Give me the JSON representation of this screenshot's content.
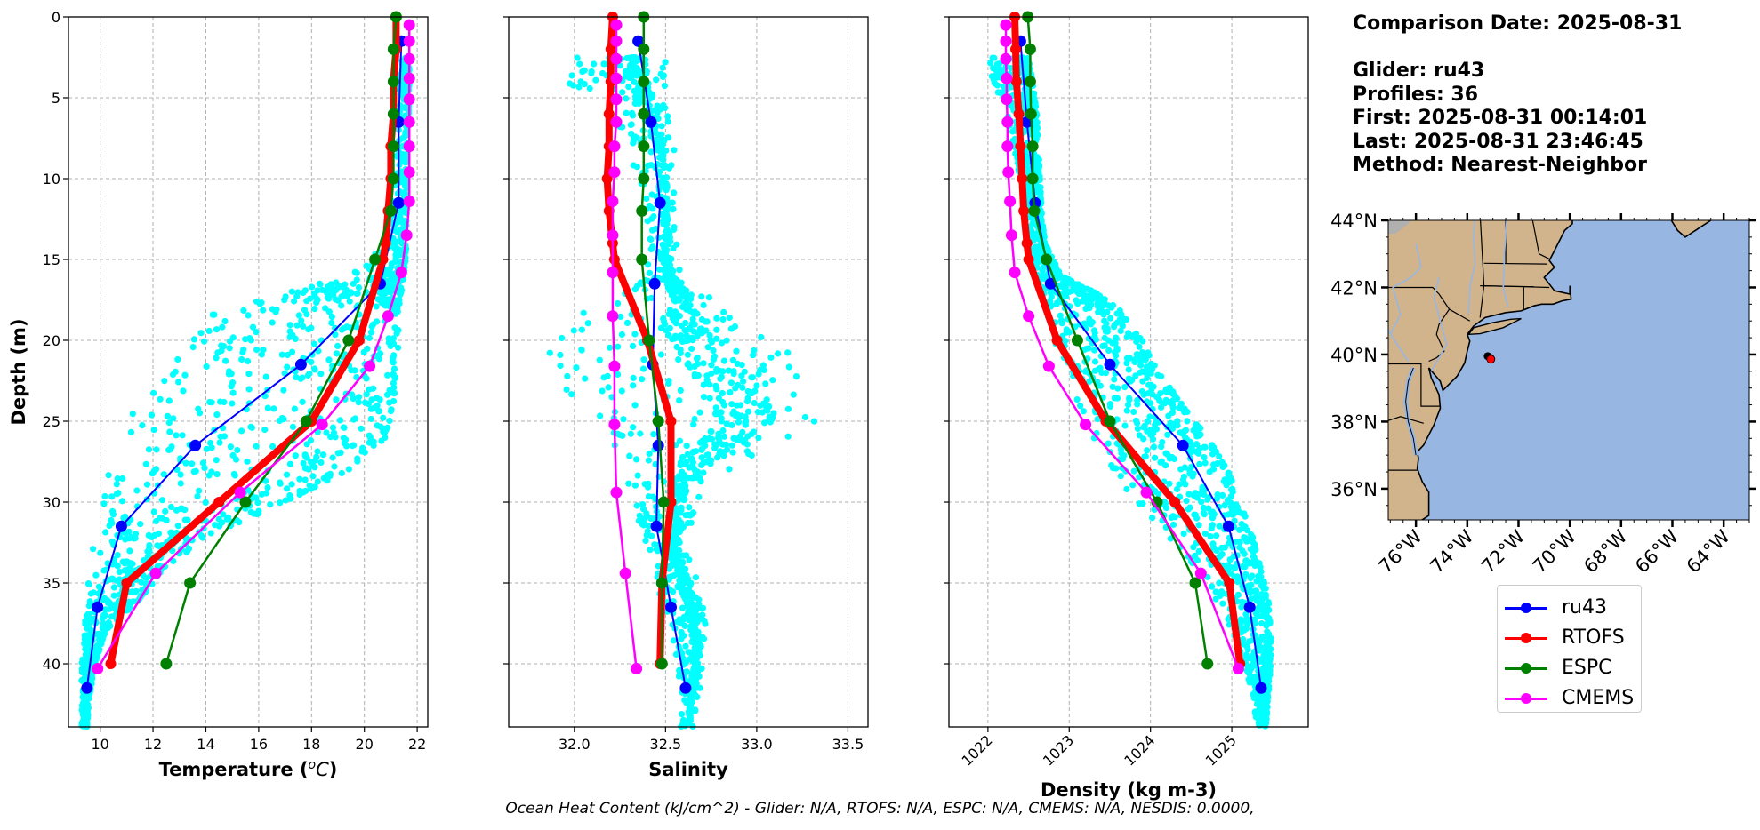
{
  "info_panel": {
    "comparison_date": "Comparison Date: 2025-08-31",
    "glider": "Glider: ru43",
    "profiles": "Profiles: 36",
    "first": "First: 2025-08-31 00:14:01",
    "last": "Last: 2025-08-31 23:46:45",
    "method": "Method: Nearest-Neighbor"
  },
  "footer": "Ocean Heat Content (kJ/cm^2) - Glider: N/A,  RTOFS: N/A,  ESPC: N/A,  CMEMS: N/A,  NESDIS: 0.0000,",
  "legend": [
    {
      "label": "ru43",
      "color": "#0000ff"
    },
    {
      "label": "RTOFS",
      "color": "#ff0000"
    },
    {
      "label": "ESPC",
      "color": "#008000"
    },
    {
      "label": "CMEMS",
      "color": "#ff00ff"
    }
  ],
  "colors": {
    "glider_scatter": "#00ffff",
    "ru43": "#0000ff",
    "RTOFS": "#ff0000",
    "ESPC": "#008000",
    "CMEMS": "#ff00ff",
    "land": "#d2b48c",
    "ocean": "#97b6e1",
    "lakes_rivers": "#97b6e1",
    "canada_land": "#b0b0b0",
    "grid": "#b0b0b0"
  },
  "chart_data": [
    {
      "type": "line",
      "id": "temperature",
      "title": "",
      "xlabel": "Temperature (°C)",
      "ylabel": "Depth (m)",
      "xlim": [
        8.8,
        22.4
      ],
      "ylim": [
        43.9,
        0
      ],
      "y_inverted": true,
      "grid": true,
      "xticks": [
        10,
        12,
        14,
        16,
        18,
        20,
        22
      ],
      "yticks": [
        0,
        5,
        10,
        15,
        20,
        25,
        30,
        35,
        40
      ],
      "scatter_envelope": {
        "description": "glider observations (cyan dots), depth vs [min,max] value",
        "depth": [
          2.5,
          5,
          10,
          14,
          16,
          17,
          18,
          20,
          22,
          24,
          26,
          28,
          30,
          32,
          34,
          36,
          38,
          40,
          42,
          43.9
        ],
        "min": [
          21.4,
          21.3,
          21.2,
          20.8,
          19.5,
          17.0,
          14.2,
          13.0,
          12.0,
          11.3,
          10.8,
          10.3,
          10.0,
          9.8,
          9.6,
          9.5,
          9.4,
          9.3,
          9.3,
          9.3
        ],
        "max": [
          21.7,
          21.7,
          21.6,
          21.6,
          21.5,
          21.4,
          21.3,
          21.3,
          21.2,
          21.1,
          20.8,
          19.4,
          17.0,
          14.2,
          12.5,
          11.5,
          10.2,
          9.8,
          9.6,
          9.5
        ]
      },
      "series": [
        {
          "name": "ru43",
          "depth": [
            1.5,
            6.5,
            11.5,
            16.5,
            21.5,
            26.5,
            31.5,
            36.5,
            41.5
          ],
          "values": [
            21.4,
            21.3,
            21.3,
            20.6,
            17.6,
            13.6,
            10.8,
            9.9,
            9.5
          ]
        },
        {
          "name": "RTOFS",
          "depth": [
            0,
            2,
            4,
            6,
            8,
            10,
            12,
            14,
            15,
            20,
            25,
            30,
            35,
            40
          ],
          "values": [
            21.2,
            21.2,
            21.1,
            21.1,
            21.0,
            21.0,
            20.9,
            20.8,
            20.7,
            19.8,
            18.0,
            14.5,
            11.0,
            10.4
          ]
        },
        {
          "name": "ESPC",
          "depth": [
            0,
            2,
            4,
            6,
            8,
            10,
            12,
            15,
            20,
            25,
            30,
            35,
            40
          ],
          "values": [
            21.2,
            21.1,
            21.1,
            21.1,
            21.1,
            21.1,
            21.0,
            20.4,
            19.4,
            17.8,
            15.5,
            13.4,
            12.5
          ]
        },
        {
          "name": "CMEMS",
          "depth": [
            0.5,
            1.5,
            2.6,
            3.8,
            5.1,
            6.5,
            8.0,
            9.6,
            11.4,
            13.5,
            15.8,
            18.5,
            21.6,
            25.2,
            29.4,
            34.4,
            40.3
          ],
          "values": [
            21.7,
            21.7,
            21.7,
            21.7,
            21.7,
            21.7,
            21.7,
            21.7,
            21.7,
            21.6,
            21.4,
            20.9,
            20.2,
            18.4,
            15.3,
            12.1,
            9.9
          ]
        }
      ]
    },
    {
      "type": "line",
      "id": "salinity",
      "title": "",
      "xlabel": "Salinity",
      "ylabel": "",
      "xlim": [
        31.64,
        33.61
      ],
      "ylim": [
        43.9,
        0
      ],
      "y_inverted": true,
      "grid": true,
      "xticks": [
        "32.0",
        "32.5",
        "33.0",
        "33.5"
      ],
      "yticks": [
        0,
        5,
        10,
        15,
        20,
        25,
        30,
        35,
        40
      ],
      "scatter_envelope": {
        "description": "glider observations (cyan dots), depth vs [min,max] value",
        "depth": [
          2.5,
          4,
          6,
          8,
          12,
          16,
          17,
          19,
          21,
          23,
          25,
          27,
          29,
          31,
          33,
          35,
          37,
          39,
          41,
          43.9
        ],
        "min": [
          31.95,
          31.95,
          32.2,
          32.3,
          32.38,
          32.38,
          32.3,
          31.9,
          31.85,
          31.95,
          32.1,
          32.2,
          32.3,
          32.35,
          32.4,
          32.45,
          32.5,
          32.55,
          32.57,
          32.58
        ],
        "max": [
          32.5,
          32.52,
          32.55,
          32.55,
          32.55,
          32.58,
          32.7,
          32.95,
          33.2,
          33.3,
          33.35,
          33.0,
          32.7,
          32.65,
          32.62,
          32.68,
          32.72,
          32.72,
          32.7,
          32.65
        ]
      },
      "series": [
        {
          "name": "ru43",
          "depth": [
            1.5,
            6.5,
            11.5,
            16.5,
            21.5,
            26.5,
            31.5,
            36.5,
            41.5
          ],
          "values": [
            32.35,
            32.42,
            32.47,
            32.44,
            32.43,
            32.46,
            32.45,
            32.53,
            32.61
          ]
        },
        {
          "name": "RTOFS",
          "depth": [
            0,
            2,
            4,
            6,
            8,
            10,
            12,
            14,
            15,
            20,
            25,
            30,
            35,
            40
          ],
          "values": [
            32.21,
            32.2,
            32.2,
            32.19,
            32.19,
            32.18,
            32.19,
            32.21,
            32.22,
            32.4,
            32.53,
            32.53,
            32.48,
            32.47
          ]
        },
        {
          "name": "ESPC",
          "depth": [
            0,
            2,
            4,
            6,
            8,
            10,
            12,
            15,
            20,
            25,
            30,
            35,
            40
          ],
          "values": [
            32.38,
            32.38,
            32.38,
            32.38,
            32.38,
            32.38,
            32.37,
            32.37,
            32.41,
            32.46,
            32.49,
            32.48,
            32.48
          ]
        },
        {
          "name": "CMEMS",
          "depth": [
            0.5,
            1.5,
            2.6,
            3.8,
            5.1,
            6.5,
            8.0,
            9.6,
            11.4,
            13.5,
            15.8,
            18.5,
            21.6,
            25.2,
            29.4,
            34.4,
            40.3
          ],
          "values": [
            32.23,
            32.23,
            32.23,
            32.23,
            32.23,
            32.23,
            32.22,
            32.22,
            32.21,
            32.21,
            32.21,
            32.21,
            32.22,
            32.22,
            32.23,
            32.28,
            32.34
          ]
        }
      ]
    },
    {
      "type": "line",
      "id": "density",
      "title": "",
      "xlabel": "Density (kg m-3)",
      "ylabel": "",
      "xlim": [
        1021.52,
        1025.94
      ],
      "ylim": [
        43.9,
        0
      ],
      "y_inverted": true,
      "grid": true,
      "xticks": [
        1022,
        1023,
        1024,
        1025
      ],
      "xtick_rotation": 45,
      "yticks": [
        0,
        5,
        10,
        15,
        20,
        25,
        30,
        35,
        40
      ],
      "scatter_envelope": {
        "description": "glider observations (cyan dots), depth vs [min,max] value",
        "depth": [
          2.5,
          4,
          6,
          8,
          10,
          12,
          14,
          16,
          17,
          18,
          20,
          22,
          24,
          26,
          28,
          30,
          32,
          34,
          36,
          38,
          40,
          42,
          43.9
        ],
        "min": [
          1022.0,
          1022.05,
          1022.2,
          1022.3,
          1022.4,
          1022.45,
          1022.5,
          1022.6,
          1022.65,
          1022.7,
          1022.8,
          1022.95,
          1023.1,
          1023.25,
          1023.5,
          1023.8,
          1024.2,
          1024.5,
          1024.8,
          1025.0,
          1025.15,
          1025.25,
          1025.3
        ],
        "max": [
          1022.5,
          1022.55,
          1022.6,
          1022.62,
          1022.64,
          1022.66,
          1022.7,
          1022.9,
          1023.3,
          1023.6,
          1023.9,
          1024.1,
          1024.4,
          1024.7,
          1024.95,
          1025.1,
          1025.25,
          1025.35,
          1025.45,
          1025.48,
          1025.48,
          1025.45,
          1025.42
        ]
      },
      "series": [
        {
          "name": "ru43",
          "depth": [
            1.5,
            6.5,
            11.5,
            16.5,
            21.5,
            26.5,
            31.5,
            36.5,
            41.5
          ],
          "values": [
            1022.4,
            1022.48,
            1022.58,
            1022.77,
            1023.5,
            1024.4,
            1024.96,
            1025.22,
            1025.36
          ]
        },
        {
          "name": "RTOFS",
          "depth": [
            0,
            2,
            4,
            6,
            8,
            10,
            12,
            14,
            15,
            20,
            25,
            30,
            35,
            40
          ],
          "values": [
            1022.33,
            1022.34,
            1022.35,
            1022.38,
            1022.4,
            1022.42,
            1022.44,
            1022.48,
            1022.5,
            1022.85,
            1023.45,
            1024.3,
            1024.97,
            1025.1
          ]
        },
        {
          "name": "ESPC",
          "depth": [
            0,
            2,
            4,
            6,
            8,
            10,
            12,
            15,
            20,
            25,
            30,
            35,
            40
          ],
          "values": [
            1022.49,
            1022.52,
            1022.52,
            1022.53,
            1022.55,
            1022.55,
            1022.57,
            1022.72,
            1023.1,
            1023.5,
            1024.08,
            1024.55,
            1024.7
          ]
        },
        {
          "name": "CMEMS",
          "depth": [
            0.5,
            1.5,
            2.6,
            3.8,
            5.1,
            6.5,
            8.0,
            9.6,
            11.4,
            13.5,
            15.8,
            18.5,
            21.6,
            25.2,
            29.4,
            34.4,
            40.3
          ],
          "values": [
            1022.22,
            1022.22,
            1022.22,
            1022.23,
            1022.23,
            1022.24,
            1022.24,
            1022.25,
            1022.27,
            1022.29,
            1022.33,
            1022.5,
            1022.75,
            1023.2,
            1023.95,
            1024.62,
            1025.08
          ]
        }
      ]
    },
    {
      "type": "map",
      "id": "location-map",
      "lon_range": [
        -77.08,
        -63.0
      ],
      "lat_range": [
        35.07,
        44.0
      ],
      "xticks": [
        "76°W",
        "74°W",
        "72°W",
        "70°W",
        "68°W",
        "66°W",
        "64°W"
      ],
      "xtick_values": [
        -76,
        -74,
        -72,
        -70,
        -68,
        -66,
        -64
      ],
      "xtick_rotation": 45,
      "yticks": [
        "36°N",
        "38°N",
        "40°N",
        "42°N",
        "44°N"
      ],
      "ytick_values": [
        36,
        38,
        40,
        42,
        44
      ],
      "glider_track": [
        [
          -73.2,
          39.95
        ],
        [
          -73.1,
          39.9
        ]
      ],
      "glider_position": [
        -73.08,
        39.86
      ]
    }
  ]
}
